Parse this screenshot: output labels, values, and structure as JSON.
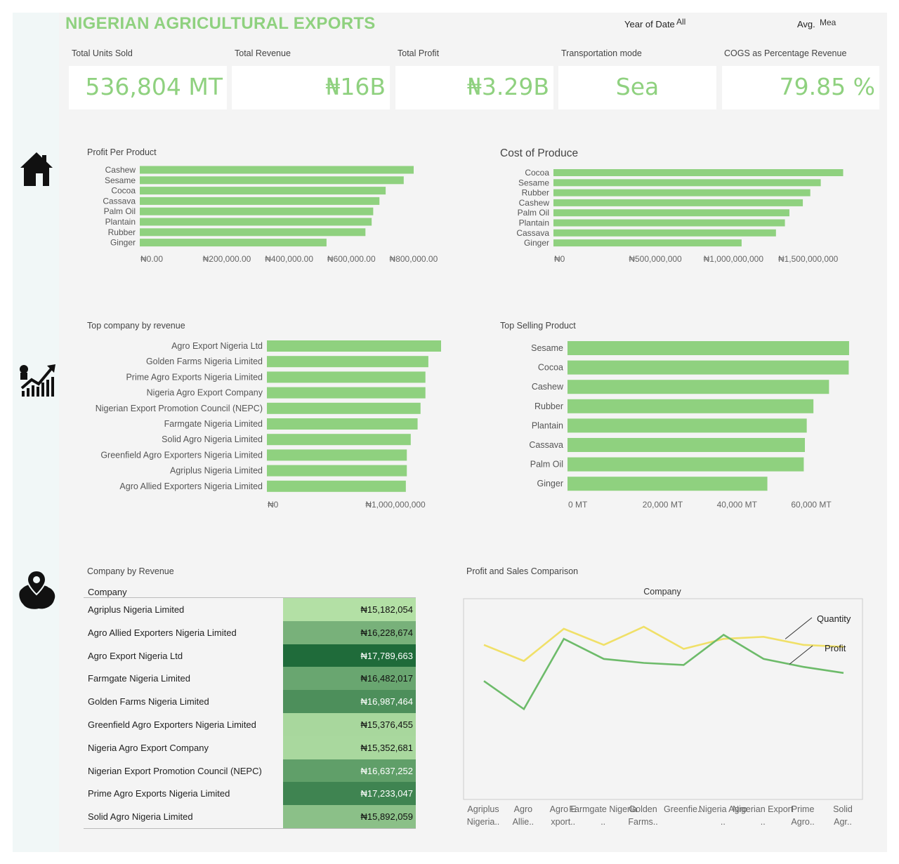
{
  "title": "NIGERIAN AGRICULTURAL EXPORTS",
  "filters": {
    "year_label": "Year of Date",
    "year_value": "All",
    "avg_label": "Avg.",
    "avg_value": "Mea"
  },
  "kpis": [
    {
      "label": "Total Units Sold",
      "value": "536,804 MT"
    },
    {
      "label": "Total Revenue",
      "value": "₦16B"
    },
    {
      "label": "Total Profit",
      "value": "₦3.29B"
    },
    {
      "label": "Transportation mode",
      "value": "Sea"
    },
    {
      "label": "COGS as Percentage Revenue",
      "value": "79.85 %"
    }
  ],
  "nav_icons": [
    "home-icon",
    "growth-chart-icon",
    "map-location-icon"
  ],
  "chart_data": [
    {
      "id": "profit_per_product",
      "type": "bar",
      "orientation": "horizontal",
      "title": "Profit Per Product",
      "categories": [
        "Cashew",
        "Sesame",
        "Cocoa",
        "Cassava",
        "Palm Oil",
        "Plantain",
        "Rubber",
        "Ginger"
      ],
      "values": [
        880000,
        848000,
        790000,
        770000,
        750000,
        745000,
        725000,
        600000
      ],
      "xlim": [
        0,
        880000
      ],
      "ticks": [
        0,
        200000,
        400000,
        600000,
        800000
      ],
      "tick_labels": [
        "₦0.00",
        "₦200,000.00",
        "₦400,000.00",
        "₦600,000.00",
        "₦800,000.00"
      ],
      "color": "#8fd17f"
    },
    {
      "id": "cost_of_produce",
      "type": "bar",
      "orientation": "horizontal",
      "title": "Cost of Produce",
      "categories": [
        "Cocoa",
        "Sesame",
        "Rubber",
        "Cashew",
        "Palm Oil",
        "Plantain",
        "Cassava",
        "Ginger"
      ],
      "values": [
        1940000000,
        1790000000,
        1720000000,
        1670000000,
        1580000000,
        1550000000,
        1490000000,
        1260000000
      ],
      "xlim": [
        0,
        1980000000
      ],
      "ticks": [
        0,
        500000000,
        1000000000,
        1500000000
      ],
      "tick_labels": [
        "₦0",
        "₦500,000,000",
        "₦1,000,000,000",
        "₦1,500,000,000"
      ],
      "color": "#8fd17f"
    },
    {
      "id": "top_company_by_revenue",
      "type": "bar",
      "orientation": "horizontal",
      "title": "Top company by revenue",
      "categories": [
        "Agro Export Nigeria Ltd",
        "Golden Farms Nigeria Limited",
        "Prime Agro Exports Nigeria Limited",
        "Nigeria Agro Export Company",
        "Nigerian Export Promotion Council (NEPC)",
        "Farmgate Nigeria Limited",
        "Solid Agro Nigeria Limited",
        "Greenfield Agro Exporters Nigeria Limited",
        "Agriplus Nigeria Limited",
        "Agro Allied Exporters Nigeria Limited"
      ],
      "values": [
        1780000000,
        1650000000,
        1620000000,
        1620000000,
        1570000000,
        1540000000,
        1470000000,
        1430000000,
        1430000000,
        1420000000
      ],
      "xlim": [
        0,
        1780000000
      ],
      "ticks": [
        0,
        1000000000
      ],
      "tick_labels": [
        "₦0",
        "₦1,000,000,000"
      ],
      "color": "#8fd17f"
    },
    {
      "id": "top_selling_product",
      "type": "bar",
      "orientation": "horizontal",
      "title": "Top Selling Product",
      "categories": [
        "Sesame",
        "Cocoa",
        "Cashew",
        "Rubber",
        "Plantain",
        "Cassava",
        "Palm Oil",
        "Ginger"
      ],
      "values": [
        75800,
        75700,
        70400,
        66200,
        64400,
        63900,
        63600,
        53800
      ],
      "xlim": [
        0,
        76000
      ],
      "ticks": [
        0,
        20000,
        40000,
        60000
      ],
      "tick_labels": [
        "0 MT",
        "20,000 MT",
        "40,000 MT",
        "60,000 MT"
      ],
      "color": "#8fd17f"
    },
    {
      "id": "company_by_revenue",
      "type": "table",
      "title": "Company by Revenue",
      "column_header": "Company",
      "rows": [
        {
          "company": "Agriplus Nigeria Limited",
          "revenue": "₦15,182,054",
          "value": 15182054
        },
        {
          "company": "Agro Allied Exporters Nigeria Limited",
          "revenue": "₦16,228,674",
          "value": 16228674
        },
        {
          "company": "Agro Export Nigeria Ltd",
          "revenue": "₦17,789,663",
          "value": 17789663
        },
        {
          "company": "Farmgate Nigeria Limited",
          "revenue": "₦16,482,017",
          "value": 16482017
        },
        {
          "company": "Golden Farms Nigeria Limited",
          "revenue": "₦16,987,464",
          "value": 16987464
        },
        {
          "company": "Greenfield Agro Exporters Nigeria Limited",
          "revenue": "₦15,376,455",
          "value": 15376455
        },
        {
          "company": "Nigeria Agro Export Company",
          "revenue": "₦15,352,681",
          "value": 15352681
        },
        {
          "company": "Nigerian Export Promotion Council (NEPC)",
          "revenue": "₦16,637,252",
          "value": 16637252
        },
        {
          "company": "Prime Agro Exports Nigeria Limited",
          "revenue": "₦17,233,047",
          "value": 17233047
        },
        {
          "company": "Solid Agro Nigeria Limited",
          "revenue": "₦15,892,059",
          "value": 15892059
        }
      ],
      "color_scale": [
        "#b3e0a5",
        "#1f6b3a"
      ]
    },
    {
      "id": "profit_sales_comparison",
      "type": "line",
      "title": "Profit and Sales Comparison",
      "xlabel": "Company",
      "categories": [
        "Agriplus Nigeria..",
        "Agro Allie..",
        "Agro E xport..",
        "Farmgate Nigeria ..",
        "Golden Farms..",
        "Greenfie..",
        "Nigeria Agro ..",
        "Nigerian Export ..",
        "Prime Agro..",
        "Solid Agr.."
      ],
      "series": [
        {
          "name": "Quantity",
          "color": "#f0e068",
          "values": [
            0.77,
            0.69,
            0.85,
            0.77,
            0.86,
            0.75,
            0.8,
            0.81,
            0.77,
            0.76
          ]
        },
        {
          "name": "Profit",
          "color": "#6dbb6a",
          "values": [
            0.59,
            0.45,
            0.8,
            0.7,
            0.68,
            0.67,
            0.82,
            0.7,
            0.66,
            0.63
          ]
        }
      ],
      "ylim": [
        0,
        1
      ],
      "grid": false,
      "legend": "inline-right"
    }
  ]
}
